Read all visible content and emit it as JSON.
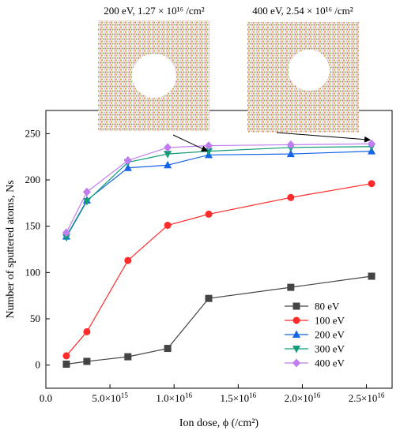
{
  "chart_data": {
    "type": "line",
    "xlabel": "Ion dose, ϕ (/cm²)",
    "ylabel": "Number of sputtered atoms, Ns",
    "xlim": [
      0,
      27000000000000000
    ],
    "ylim": [
      -25,
      275
    ],
    "x_ticks": [
      0,
      5000000000000000,
      10000000000000000,
      15000000000000000,
      20000000000000000,
      25000000000000000
    ],
    "x_tick_labels": [
      {
        "base": "0.0",
        "exp": ""
      },
      {
        "base": "5.0×10",
        "exp": "15"
      },
      {
        "base": "1.0×10",
        "exp": "16"
      },
      {
        "base": "1.5×10",
        "exp": "16"
      },
      {
        "base": "2.0×10",
        "exp": "16"
      },
      {
        "base": "2.5×10",
        "exp": "16"
      }
    ],
    "y_ticks": [
      0,
      50,
      100,
      150,
      200,
      250
    ],
    "y_tick_labels": [
      "0",
      "50",
      "100",
      "150",
      "200",
      "250"
    ],
    "x": [
      1600000000000000,
      3200000000000000,
      6400000000000000,
      9500000000000000,
      12700000000000000,
      19100000000000000,
      25400000000000000
    ],
    "series": [
      {
        "name": "80 eV",
        "color": "#444444",
        "marker": "square",
        "values": [
          1,
          4,
          9,
          18,
          72,
          84,
          96
        ]
      },
      {
        "name": "100 eV",
        "color": "#ff2a2a",
        "marker": "circle",
        "values": [
          10,
          36,
          113,
          151,
          163,
          181,
          196
        ]
      },
      {
        "name": "200 eV",
        "color": "#1565e6",
        "marker": "triangle-up",
        "values": [
          139,
          178,
          213,
          216,
          227,
          228,
          231
        ]
      },
      {
        "name": "300 eV",
        "color": "#129c7a",
        "marker": "triangle-down",
        "values": [
          138,
          177,
          219,
          228,
          231,
          235,
          236
        ]
      },
      {
        "name": "400 eV",
        "color": "#c07cf0",
        "marker": "diamond",
        "values": [
          143,
          187,
          221,
          235,
          237,
          238,
          239
        ]
      }
    ],
    "legend_placement": "bottom-right",
    "grid": false,
    "annotations": [
      {
        "text": "200 eV, 1.27 × 10¹⁶ /cm²",
        "points_to": {
          "x": 12700000000000000,
          "y": 227
        }
      },
      {
        "text": "400 eV, 2.54 × 10¹⁶ /cm²",
        "points_to": {
          "x": 25400000000000000,
          "y": 239
        }
      }
    ]
  }
}
